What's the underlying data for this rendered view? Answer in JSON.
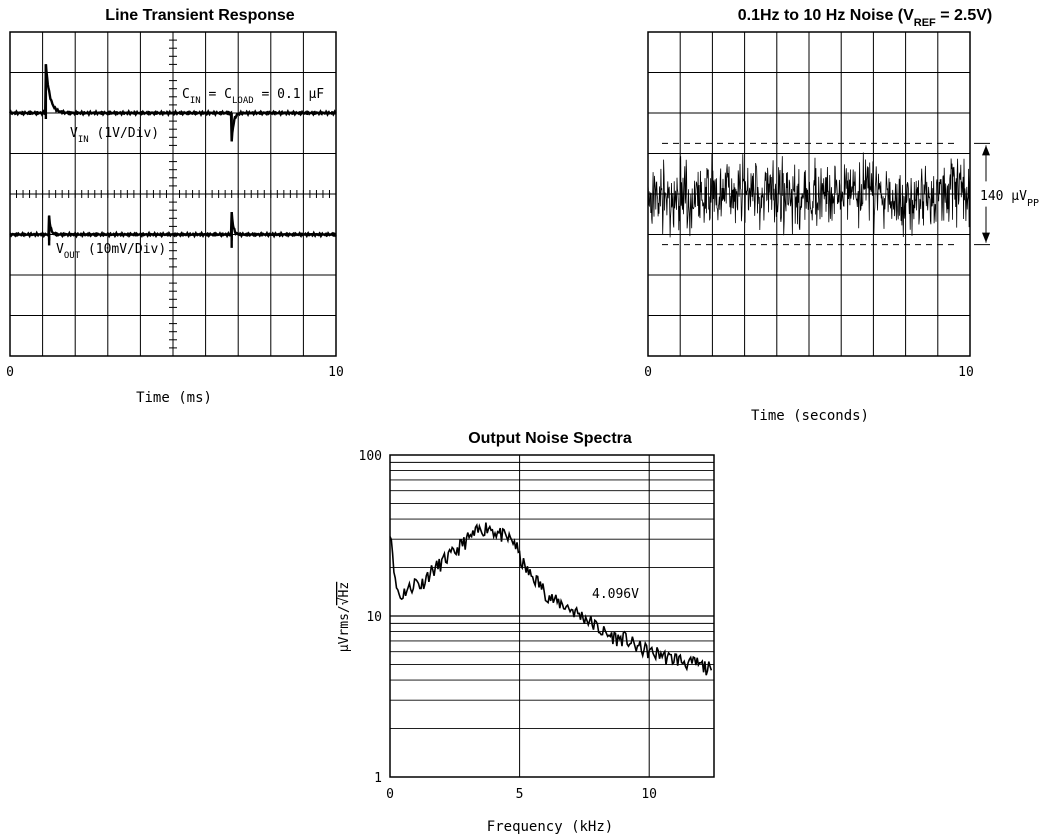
{
  "chart_data": [
    {
      "type": "line",
      "title": "Line Transient Response",
      "xlabel": "Time (ms)",
      "ylabel": "",
      "xlim": [
        0,
        10
      ],
      "x_ticks": [
        "0",
        "10"
      ],
      "grid": true,
      "grid_divisions": {
        "x": 10,
        "y": 8
      },
      "annotations": [
        {
          "id": "cap",
          "parts": [
            [
              "C",
              ""
            ],
            [
              "IN",
              "sub"
            ],
            [
              " = C",
              ""
            ],
            [
              "LOAD",
              "sub"
            ],
            [
              " = 0.1 μF",
              ""
            ]
          ]
        },
        {
          "id": "vin",
          "parts": [
            [
              "V",
              ""
            ],
            [
              "IN",
              "sub"
            ],
            [
              "  (1V/Div)",
              ""
            ]
          ]
        },
        {
          "id": "vout",
          "parts": [
            [
              "V",
              ""
            ],
            [
              "OUT",
              "sub"
            ],
            [
              "  (10mV/Div)",
              ""
            ]
          ]
        }
      ],
      "series": [
        {
          "trace": "vin",
          "baseline_div": 2.0,
          "events": [
            {
              "t": 1.1,
              "peak_div": 1.2,
              "tau_ms": 0.12
            },
            {
              "t": 6.8,
              "peak_div": -0.7,
              "tau_ms": 0.06
            }
          ]
        },
        {
          "trace": "vout",
          "baseline_div": 5.0,
          "events": [
            {
              "t": 1.2,
              "peak_div": 0.45,
              "tau_ms": 0.05
            },
            {
              "t": 6.8,
              "peak_div": 0.55,
              "tau_ms": 0.05
            }
          ]
        }
      ]
    },
    {
      "type": "line",
      "title": "0.1Hz to 10 Hz Noise",
      "title_parts": [
        [
          "0.1Hz to 10 Hz Noise (V",
          ""
        ],
        [
          "REF",
          "sub"
        ],
        [
          " = 2.5V)",
          ""
        ]
      ],
      "xlabel": "Time (seconds)",
      "ylabel": "",
      "xlim": [
        0,
        10
      ],
      "x_ticks": [
        "0",
        "10"
      ],
      "grid": true,
      "grid_divisions": {
        "x": 10,
        "y": 8
      },
      "annotations": [
        {
          "id": "pp",
          "parts": [
            [
              "140 μV",
              ""
            ],
            [
              "PP",
              "sub"
            ]
          ]
        }
      ],
      "noise_band_div": [
        2.75,
        5.25
      ],
      "noise_center_div": 4.0,
      "noise_pp_uV": 140
    },
    {
      "type": "line",
      "title": "Output Noise Spectra",
      "xlabel": "Frequency (kHz)",
      "ylabel_parts": [
        [
          "μVrms/",
          ""
        ],
        [
          "√Hz",
          "over"
        ]
      ],
      "xlim": [
        0,
        12.5
      ],
      "ylim": [
        1,
        100
      ],
      "yscale": "log",
      "x_ticks": [
        "0",
        "5",
        "10"
      ],
      "y_ticks": [
        "1",
        "10",
        "100"
      ],
      "grid": true,
      "annotations": [
        {
          "id": "vlabel",
          "parts": [
            [
              "4.096V",
              ""
            ]
          ]
        }
      ],
      "series": [
        {
          "name": "4.096V",
          "x": [
            0,
            0.2,
            0.4,
            0.6,
            0.8,
            1.0,
            1.2,
            1.4,
            1.6,
            1.8,
            2.0,
            2.2,
            2.4,
            2.6,
            2.8,
            3.0,
            3.2,
            3.4,
            3.6,
            3.8,
            4.0,
            4.2,
            4.4,
            4.6,
            4.8,
            5.0,
            5.2,
            5.4,
            5.6,
            5.8,
            6.0,
            6.2,
            6.4,
            6.6,
            6.8,
            7.0,
            7.2,
            7.4,
            7.6,
            7.8,
            8.0,
            8.2,
            8.4,
            8.6,
            8.8,
            9.0,
            9.2,
            9.4,
            9.6,
            9.8,
            10.0,
            10.2,
            10.4,
            10.6,
            10.8,
            11.0,
            11.2,
            11.4,
            11.6,
            11.8,
            12.0,
            12.2,
            12.4
          ],
          "y": [
            35,
            16,
            13,
            14.5,
            15,
            16.5,
            15.5,
            17.5,
            19,
            20,
            21.5,
            23,
            24,
            26,
            28,
            30,
            31.5,
            33.5,
            35,
            36,
            34,
            32.5,
            31,
            30,
            29,
            23,
            20,
            18,
            17,
            15.5,
            14,
            13,
            12.2,
            12,
            11.5,
            11,
            10.5,
            10,
            9.6,
            9,
            8.5,
            8,
            7.6,
            7.5,
            7.2,
            7.3,
            7,
            6.6,
            6.4,
            6.2,
            6,
            5.8,
            5.9,
            5.6,
            5.4,
            5.5,
            5.3,
            5.2,
            5.0,
            5.1,
            4.9,
            4.8,
            4.6
          ]
        }
      ]
    }
  ]
}
